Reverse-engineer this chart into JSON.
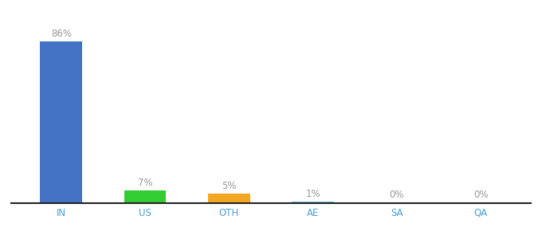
{
  "categories": [
    "IN",
    "US",
    "OTH",
    "AE",
    "SA",
    "QA"
  ],
  "values": [
    86,
    7,
    5,
    1,
    0.3,
    0.3
  ],
  "labels": [
    "86%",
    "7%",
    "5%",
    "1%",
    "0%",
    "0%"
  ],
  "bar_colors": [
    "#4472c4",
    "#33cc33",
    "#f5a623",
    "#6ec6f0",
    "#cccccc",
    "#cccccc"
  ],
  "background_color": "#ffffff",
  "ylim": [
    0,
    98
  ],
  "label_fontsize": 8.5,
  "tick_fontsize": 8.5,
  "label_color": "#999999",
  "tick_color": "#4a9fd4",
  "spine_color": "#222222",
  "bar_width": 0.5
}
